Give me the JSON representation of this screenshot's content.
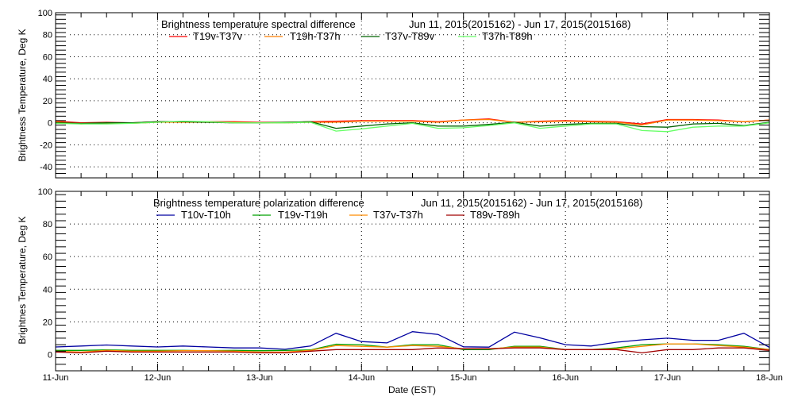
{
  "chart_data": [
    {
      "type": "line",
      "title": "Brightness temperature spectral difference",
      "date_range": "Jun 11, 2015(2015162) - Jun 17, 2015(2015168)",
      "xlabel": "",
      "ylabel": "Brightness Temperature, Deg K",
      "ylim": [
        -50,
        100
      ],
      "yticks": [
        -40,
        -20,
        0,
        20,
        40,
        60,
        80,
        100
      ],
      "xlim": [
        "2015-06-11 00:00",
        "2015-06-18 00:00"
      ],
      "grid": true,
      "legend_placement": "top",
      "series": [
        {
          "name": "T19v-T37v",
          "color": "#ff0000",
          "values": [
            1.5,
            0,
            0.5,
            0,
            1,
            1,
            1,
            1,
            0.5,
            0.5,
            1,
            1.5,
            2,
            2,
            2,
            1,
            2.5,
            3.5,
            0.5,
            1.5,
            2,
            1.5,
            1,
            -1,
            3,
            3,
            2.5,
            1,
            2.5
          ]
        },
        {
          "name": "T19h-T37h",
          "color": "#ff7f00",
          "values": [
            1,
            -1,
            0,
            -0.5,
            0.5,
            0.5,
            0.5,
            0.5,
            0,
            0,
            0.5,
            0.5,
            1.5,
            1.5,
            1.5,
            0.5,
            2.5,
            3,
            0.5,
            1,
            1.5,
            1,
            0.5,
            -2,
            2.5,
            2.5,
            2,
            1,
            2.5
          ]
        },
        {
          "name": "T37v-T89v",
          "color": "#006400",
          "values": [
            0,
            -0.5,
            0,
            0,
            1,
            1,
            0.5,
            0,
            0,
            0.5,
            1,
            -5,
            -3,
            -1,
            0,
            -3,
            -3,
            -1.5,
            0.5,
            -3,
            -1.5,
            -0.5,
            -0.5,
            -3.5,
            -4,
            -1,
            -0.5,
            -2.5,
            0.5
          ]
        },
        {
          "name": "T37h-T89h",
          "color": "#66ff66",
          "values": [
            -0.5,
            -1,
            -1,
            -0.5,
            0.5,
            1.5,
            1,
            0,
            0,
            0,
            0.5,
            -7.5,
            -5.5,
            -3,
            -0.5,
            -5,
            -4.5,
            -2.5,
            0,
            -5,
            -3,
            -1,
            -1,
            -7,
            -8,
            -4,
            -3,
            -3,
            0
          ]
        }
      ]
    },
    {
      "type": "line",
      "title": "Brightness temperature polarization difference",
      "date_range": "Jun 11, 2015(2015162) - Jun 17, 2015(2015168)",
      "xlabel": "Date (EST)",
      "ylabel": "Brightnes Temperature, Deg K",
      "ylim": [
        -10,
        100
      ],
      "yticks": [
        0,
        20,
        40,
        60,
        80,
        100
      ],
      "xlim": [
        "2015-06-11 00:00",
        "2015-06-18 00:00"
      ],
      "xtick_labels": [
        "11-Jun",
        "12-Jun",
        "13-Jun",
        "14-Jun",
        "15-Jun",
        "16-Jun",
        "17-Jun",
        "18-Jun"
      ],
      "grid": true,
      "legend_placement": "top",
      "series": [
        {
          "name": "T10v-T10h",
          "color": "#0000a0",
          "values": [
            4.6,
            5.2,
            5.8,
            5.2,
            4.6,
            5.2,
            4.6,
            4,
            4,
            3.2,
            5.2,
            13,
            7.9,
            7.1,
            14,
            12.3,
            4.7,
            4.5,
            13.7,
            10.2,
            6,
            5.2,
            7.5,
            9,
            10,
            8.7,
            8.7,
            13,
            4.4
          ]
        },
        {
          "name": "T19v-T19h",
          "color": "#00a000",
          "values": [
            2.5,
            2.5,
            2.8,
            2.5,
            2.5,
            2.5,
            2.3,
            2.5,
            2.3,
            2.5,
            2.8,
            6.3,
            6,
            4.5,
            6,
            6,
            3,
            3,
            5,
            5,
            3,
            3,
            4,
            6,
            6.5,
            6.5,
            6,
            5,
            3
          ]
        },
        {
          "name": "T37v-T37h",
          "color": "#ff8c00",
          "values": [
            2,
            1.5,
            2.5,
            2,
            2,
            2.3,
            2.3,
            2,
            1.5,
            1.5,
            2.5,
            5.5,
            5,
            4.5,
            5.5,
            5,
            3.5,
            3.5,
            4.5,
            4.5,
            3,
            3,
            3.5,
            5,
            6.5,
            6.5,
            5.5,
            4.5,
            3
          ]
        },
        {
          "name": "T89v-T89h",
          "color": "#a00000",
          "values": [
            1.5,
            1,
            2,
            1.5,
            1.5,
            1.5,
            1.5,
            1.5,
            1,
            1,
            2,
            3,
            3,
            3,
            3,
            4,
            3.5,
            3.5,
            4,
            4,
            3,
            3,
            3,
            1,
            3,
            3,
            4,
            4,
            2.5
          ]
        }
      ]
    }
  ],
  "x": [
    "2015-06-11 00:00",
    "2015-06-11 06:00",
    "2015-06-11 12:00",
    "2015-06-11 18:00",
    "2015-06-12 00:00",
    "2015-06-12 06:00",
    "2015-06-12 12:00",
    "2015-06-12 18:00",
    "2015-06-13 00:00",
    "2015-06-13 06:00",
    "2015-06-13 12:00",
    "2015-06-13 18:00",
    "2015-06-14 00:00",
    "2015-06-14 06:00",
    "2015-06-14 12:00",
    "2015-06-14 18:00",
    "2015-06-15 00:00",
    "2015-06-15 06:00",
    "2015-06-15 12:00",
    "2015-06-15 18:00",
    "2015-06-16 00:00",
    "2015-06-16 06:00",
    "2015-06-16 12:00",
    "2015-06-16 18:00",
    "2015-06-17 00:00",
    "2015-06-17 06:00",
    "2015-06-17 12:00",
    "2015-06-17 18:00",
    "2015-06-18 00:00"
  ]
}
